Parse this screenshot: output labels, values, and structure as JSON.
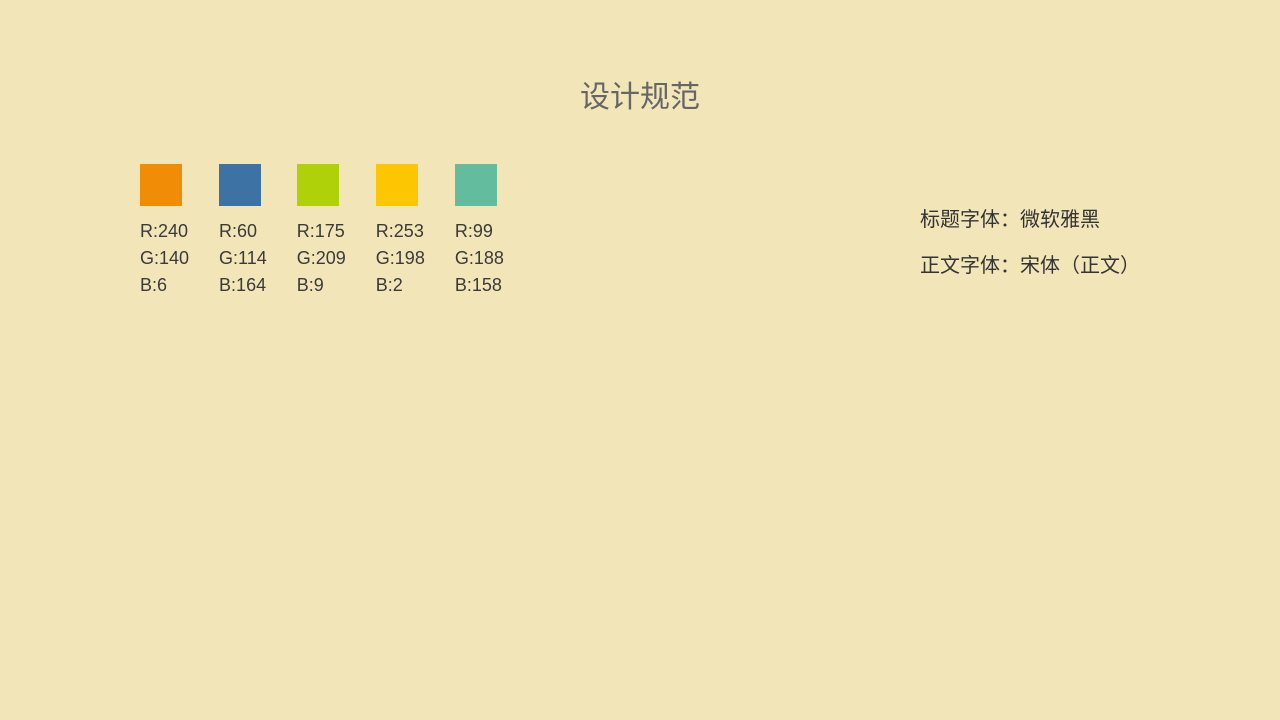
{
  "title": "设计规范",
  "background_color": "#f2e6b9",
  "palette": [
    {
      "hex": "#f08c06",
      "r": 240,
      "g": 140,
      "b": 6
    },
    {
      "hex": "#3c72a4",
      "r": 60,
      "g": 114,
      "b": 164
    },
    {
      "hex": "#afd109",
      "r": 175,
      "g": 209,
      "b": 9
    },
    {
      "hex": "#fdc602",
      "r": 253,
      "g": 198,
      "b": 2
    },
    {
      "hex": "#63bc9e",
      "r": 99,
      "g": 188,
      "b": 158
    }
  ],
  "fonts": {
    "title_label": "标题字体：微软雅黑",
    "body_label": "正文字体：宋体（正文）"
  }
}
